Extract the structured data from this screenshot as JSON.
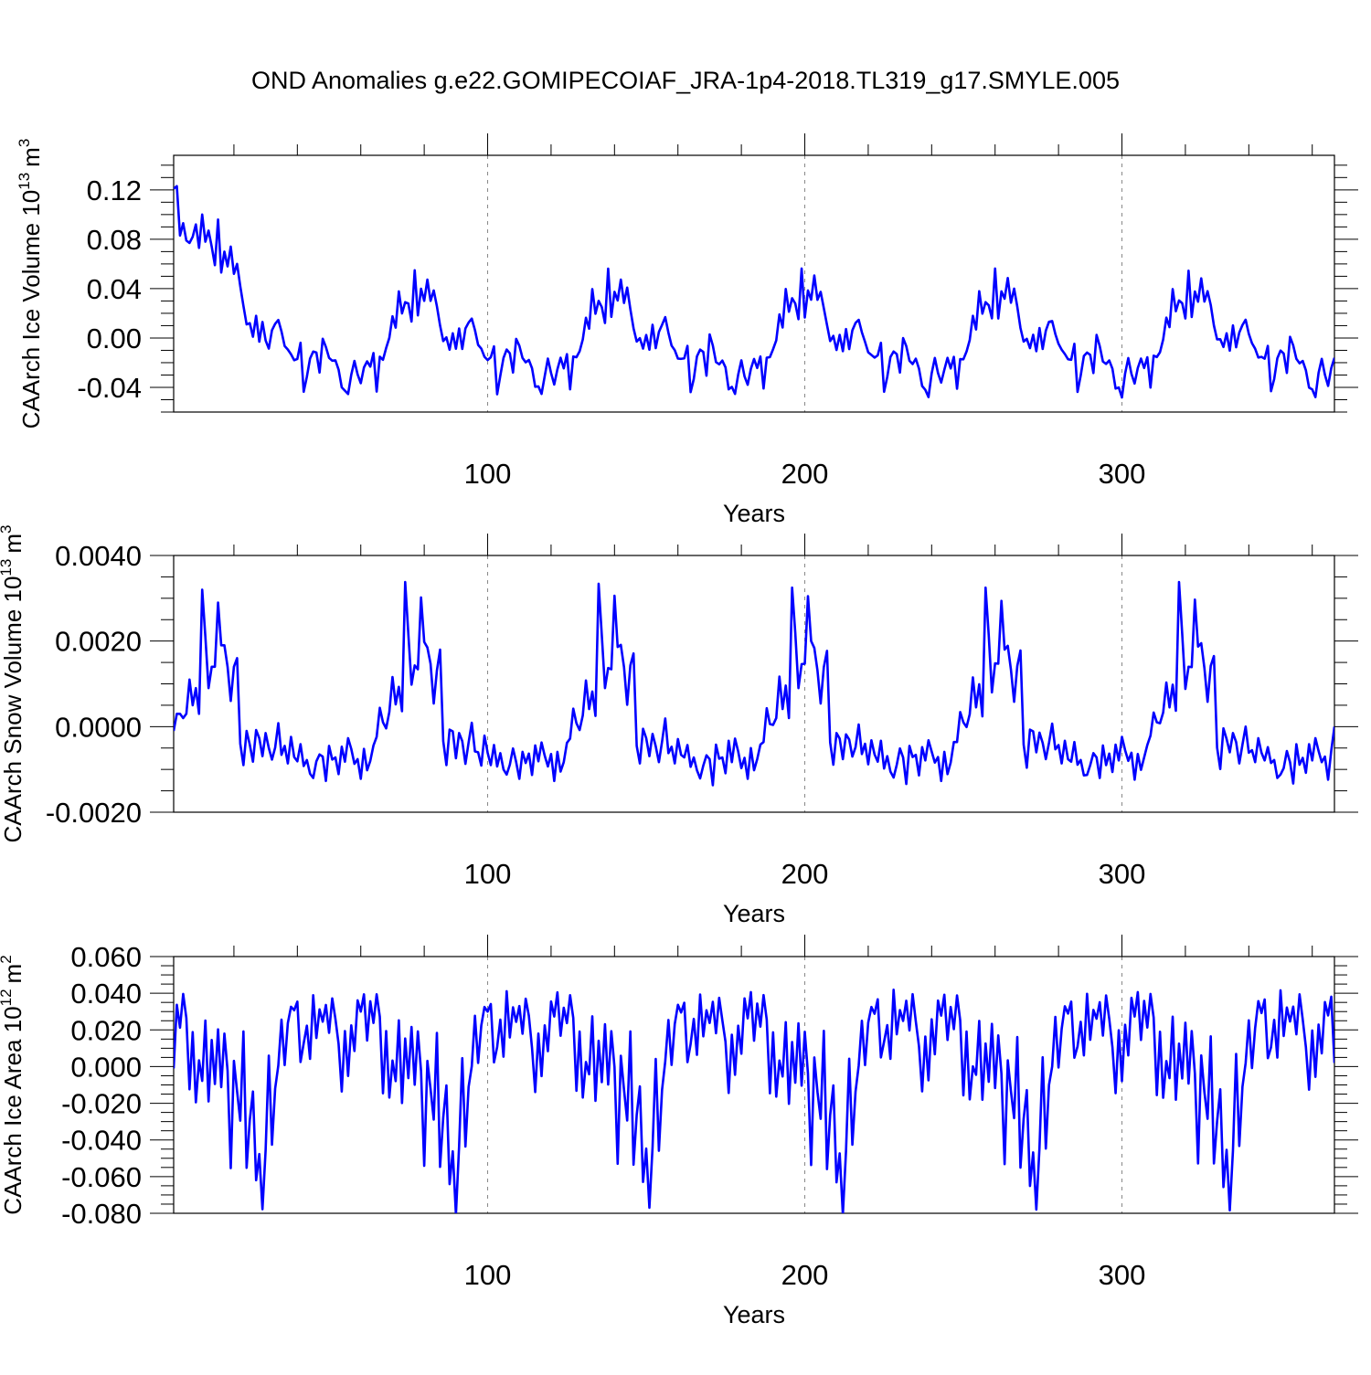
{
  "figure": {
    "title": "OND Anomalies g.e22.GOMIPECOIAF_JRA-1p4-2018.TL319_g17.SMYLE.005",
    "line_color": "#0000ff",
    "grid_color": "#888888"
  },
  "cycle_pattern": {
    "comment": "The model output repeats a ~61-year forcing cycle; panel series are built from these anomaly patterns, panel 1 additionally has an initial drift of the listed values for the first 30 years.",
    "ice_volume_drift": [
      0.121,
      0.123,
      0.083,
      0.093,
      0.079,
      0.077,
      0.082,
      0.092,
      0.073,
      0.1,
      0.078,
      0.087,
      0.074,
      0.059,
      0.096,
      0.053,
      0.07,
      0.058,
      0.074,
      0.052,
      0.06,
      0.042,
      0.026,
      0.011,
      0.012,
      0.001,
      0.018,
      -0.003,
      0.013,
      -0.002
    ],
    "ice_volume_cycle": [
      -0.008,
      0.006,
      0.012,
      0.015,
      0.005,
      -0.005,
      -0.01,
      -0.015,
      -0.017,
      -0.016,
      -0.005,
      -0.045,
      -0.032,
      -0.015,
      -0.011,
      -0.013,
      -0.029,
      0.001,
      -0.007,
      -0.018,
      -0.02,
      -0.018,
      -0.025,
      -0.04,
      -0.041,
      -0.047,
      -0.029,
      -0.018,
      -0.03,
      -0.037,
      -0.024,
      -0.018,
      -0.025,
      -0.014,
      -0.042,
      -0.016,
      -0.016,
      -0.01,
      0.0,
      0.018,
      0.008,
      0.038,
      0.02,
      0.031,
      0.027,
      0.014,
      0.056,
      0.017,
      0.038,
      0.031,
      0.049,
      0.03,
      0.039,
      0.025,
      0.009,
      -0.003,
      0.0,
      -0.008,
      0.004,
      -0.009,
      0.009
    ],
    "snow_volume_cycle": [
      -0.0006,
      -0.0005,
      -0.0009,
      -0.0003,
      -0.0007,
      -0.0008,
      -0.0004,
      -0.0009,
      -0.0007,
      -0.0011,
      -0.0012,
      -0.0009,
      -0.0006,
      -0.0008,
      -0.0013,
      -0.0005,
      -0.0008,
      -0.0007,
      -0.0011,
      -0.0004,
      -0.0008,
      -0.0003,
      -0.0006,
      -0.0009,
      -0.0007,
      -0.0013,
      -0.0006,
      -0.0011,
      -0.0008,
      -0.0004,
      -0.0003,
      0.0004,
      0.0001,
      0.0,
      0.0003,
      0.0011,
      0.0005,
      0.0009,
      0.0003,
      0.0033,
      0.0022,
      0.0009,
      0.0014,
      0.0014,
      0.003,
      0.0019,
      0.0019,
      0.0014,
      0.0006,
      0.0014,
      0.0017,
      -0.0004,
      -0.0009,
      -0.0001,
      -0.0002,
      -0.0007,
      -0.0002,
      -0.0004,
      -0.0008,
      -0.0004,
      0.0001
    ]
  },
  "chart_data": [
    {
      "type": "line",
      "name": "ice-volume",
      "ylabel": "CAArch Ice Volume 10",
      "ylabel_sup": "13",
      "ylabel_unit": "m",
      "ylabel_unit_sup": "3",
      "xlabel": "Years",
      "x_start": 1,
      "n": 367,
      "xlim": [
        1,
        367
      ],
      "ylim": [
        -0.06,
        0.148
      ],
      "x_ticks": [
        "100",
        "200",
        "300"
      ],
      "x_tick_values": [
        100,
        200,
        300
      ],
      "y_ticks": [
        "-0.04",
        "0.00",
        "0.04",
        "0.08",
        "0.12"
      ],
      "y_tick_values": [
        -0.04,
        0.0,
        0.04,
        0.08,
        0.12
      ],
      "y_minor_step": 0.01
    },
    {
      "type": "line",
      "name": "snow-volume",
      "ylabel": "CAArch Snow Volume 10",
      "ylabel_sup": "13",
      "ylabel_unit": "m",
      "ylabel_unit_sup": "3",
      "xlabel": "Years",
      "x_start": 1,
      "n": 367,
      "xlim": [
        1,
        367
      ],
      "ylim": [
        -0.002,
        0.004
      ],
      "x_ticks": [
        "100",
        "200",
        "300"
      ],
      "x_tick_values": [
        100,
        200,
        300
      ],
      "y_ticks": [
        "-0.0020",
        "0.0000",
        "0.0020",
        "0.0040"
      ],
      "y_tick_values": [
        -0.002,
        0.0,
        0.002,
        0.004
      ],
      "y_minor_step": 0.0005
    },
    {
      "type": "line",
      "name": "ice-area",
      "ylabel": "CAArch Ice Area 10",
      "ylabel_sup": "12",
      "ylabel_unit": "m",
      "ylabel_unit_sup": "2",
      "xlabel": "Years",
      "x_start": 1,
      "n": 367,
      "xlim": [
        1,
        367
      ],
      "ylim": [
        -0.08,
        0.06
      ],
      "x_ticks": [
        "100",
        "200",
        "300"
      ],
      "x_tick_values": [
        100,
        200,
        300
      ],
      "y_ticks": [
        "-0.080",
        "-0.060",
        "-0.040",
        "-0.020",
        "0.000",
        "0.020",
        "0.040",
        "0.060"
      ],
      "y_tick_values": [
        -0.08,
        -0.06,
        -0.04,
        -0.02,
        0.0,
        0.02,
        0.04,
        0.06
      ],
      "y_minor_step": 0.005
    }
  ]
}
